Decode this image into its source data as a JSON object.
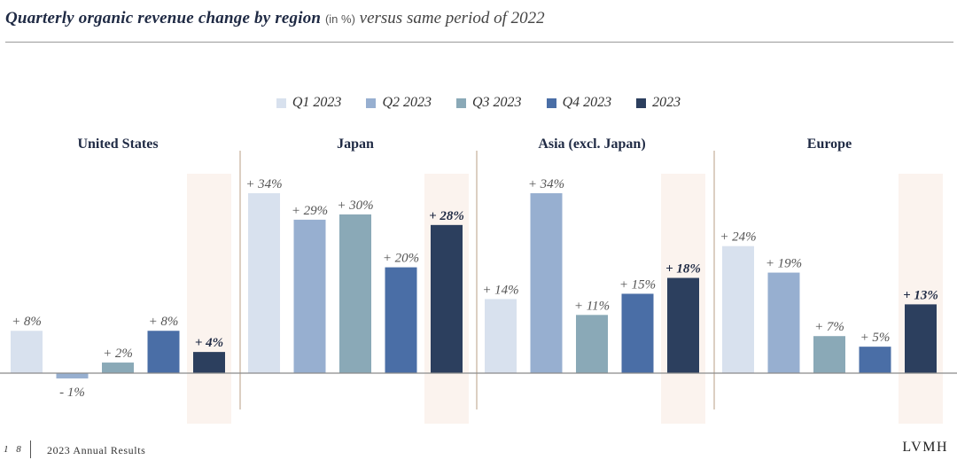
{
  "title": {
    "main": "Quarterly organic revenue change by region",
    "unit": "(in %)",
    "sub": "versus same period of 2022"
  },
  "colors": {
    "Q1 2023": "#d8e1ee",
    "Q2 2023": "#97afd0",
    "Q3 2023": "#8aa9b7",
    "Q4 2023": "#4a6ea6",
    "2023": "#2c3f5e",
    "highlight": "#fbf3ee",
    "divider": "#c9b5a2",
    "baseline": "#8a8a8a"
  },
  "chart_data": {
    "type": "bar",
    "title": "Quarterly organic revenue change by region (in %) versus same period of 2022",
    "series_names": [
      "Q1 2023",
      "Q2 2023",
      "Q3 2023",
      "Q4 2023",
      "2023"
    ],
    "groups": [
      {
        "name": "United States",
        "values": [
          8,
          -1,
          2,
          8,
          4
        ],
        "labels": [
          "+ 8%",
          "- 1%",
          "+ 2%",
          "+ 8%",
          "+ 4%"
        ]
      },
      {
        "name": "Japan",
        "values": [
          34,
          29,
          30,
          20,
          28
        ],
        "labels": [
          "+ 34%",
          "+ 29%",
          "+ 30%",
          "+ 20%",
          "+ 28%"
        ]
      },
      {
        "name": "Asia (excl. Japan)",
        "values": [
          14,
          34,
          11,
          15,
          18
        ],
        "labels": [
          "+ 14%",
          "+ 34%",
          "+ 11%",
          "+ 15%",
          "+ 18%"
        ]
      },
      {
        "name": "Europe",
        "values": [
          24,
          19,
          7,
          5,
          13
        ],
        "labels": [
          "+ 24%",
          "+ 19%",
          "+ 7%",
          "+ 5%",
          "+ 13%"
        ]
      }
    ],
    "highlighted_series": "2023",
    "legend_position": "top-center",
    "grid": false
  },
  "footer": {
    "page": "18",
    "doc": "2023 Annual Results",
    "brand": "LVMH"
  }
}
